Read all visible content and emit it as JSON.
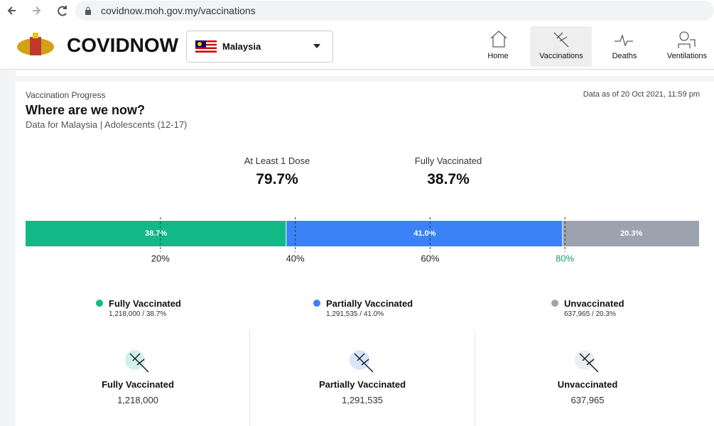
{
  "browser": {
    "url": "covidnow.moh.gov.my/vaccinations"
  },
  "header": {
    "brand": "COVIDNOW",
    "country": "Malaysia",
    "nav": [
      "Home",
      "Vaccinations",
      "Deaths",
      "Ventilations"
    ]
  },
  "card": {
    "eyebrow": "Vaccination Progress",
    "updated": "Data as of 20 Oct 2021, 11:59 pm",
    "title": "Where are we now?",
    "subtitle": "Data for Malaysia | Adolescents (12-17)"
  },
  "stats": [
    {
      "label": "At Least 1 Dose",
      "value": "79.7%"
    },
    {
      "label": "Fully Vaccinated",
      "value": "38.7%"
    }
  ],
  "chart_data": {
    "type": "stacked-bar",
    "series": [
      {
        "name": "Fully Vaccinated",
        "color": "#12b886",
        "values": [
          38.7
        ],
        "value_labels": [
          "38.7%"
        ]
      },
      {
        "name": "Partially Vaccinated",
        "color": "#3b82f6",
        "values": [
          41.0
        ],
        "value_labels": [
          "41.0%"
        ]
      },
      {
        "name": "Unvaccinated",
        "color": "#9ca3af",
        "values": [
          20.3
        ],
        "value_labels": [
          "20.3%"
        ]
      }
    ],
    "xlim": [
      0,
      100
    ],
    "xticks": [
      {
        "value": 20,
        "label": "20%"
      },
      {
        "value": 40,
        "label": "40%"
      },
      {
        "value": 60,
        "label": "60%"
      },
      {
        "value": 80,
        "label": "80%",
        "color": "#1c9a6c"
      }
    ]
  },
  "breakdown": [
    "1,218,000 / 38.7%",
    "1,291,535 / 41.0%",
    "637,965 / 20.3%"
  ],
  "cards": [
    {
      "title": "Fully Vaccinated",
      "value": "1,218,000"
    },
    {
      "title": "Partially Vaccinated",
      "value": "1,291,535"
    },
    {
      "title": "Unvaccinated",
      "value": "637,965"
    }
  ]
}
